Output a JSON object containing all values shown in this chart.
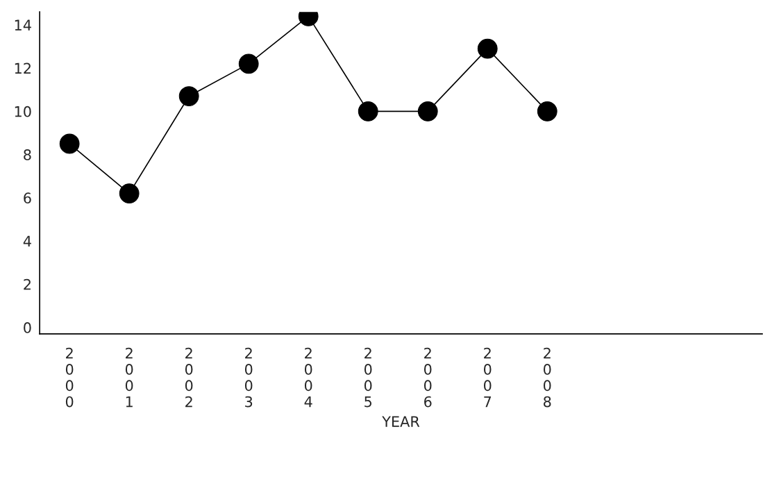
{
  "chart_data": {
    "type": "line",
    "xlabel": "YEAR",
    "categories": [
      "2000",
      "2001",
      "2002",
      "2003",
      "2004",
      "2005",
      "2006",
      "2007",
      "2008"
    ],
    "series": [
      {
        "color": "#000000",
        "values": [
          8.5,
          6.2,
          10.7,
          12.2,
          14.4,
          10.0,
          10.0,
          12.9,
          10.0
        ]
      }
    ],
    "ylim": [
      -0.3,
      14.6
    ],
    "yticks": [
      0,
      2,
      4,
      6,
      8,
      10,
      12,
      14
    ],
    "grid": false,
    "marker": "circle",
    "line_style": "solid"
  }
}
